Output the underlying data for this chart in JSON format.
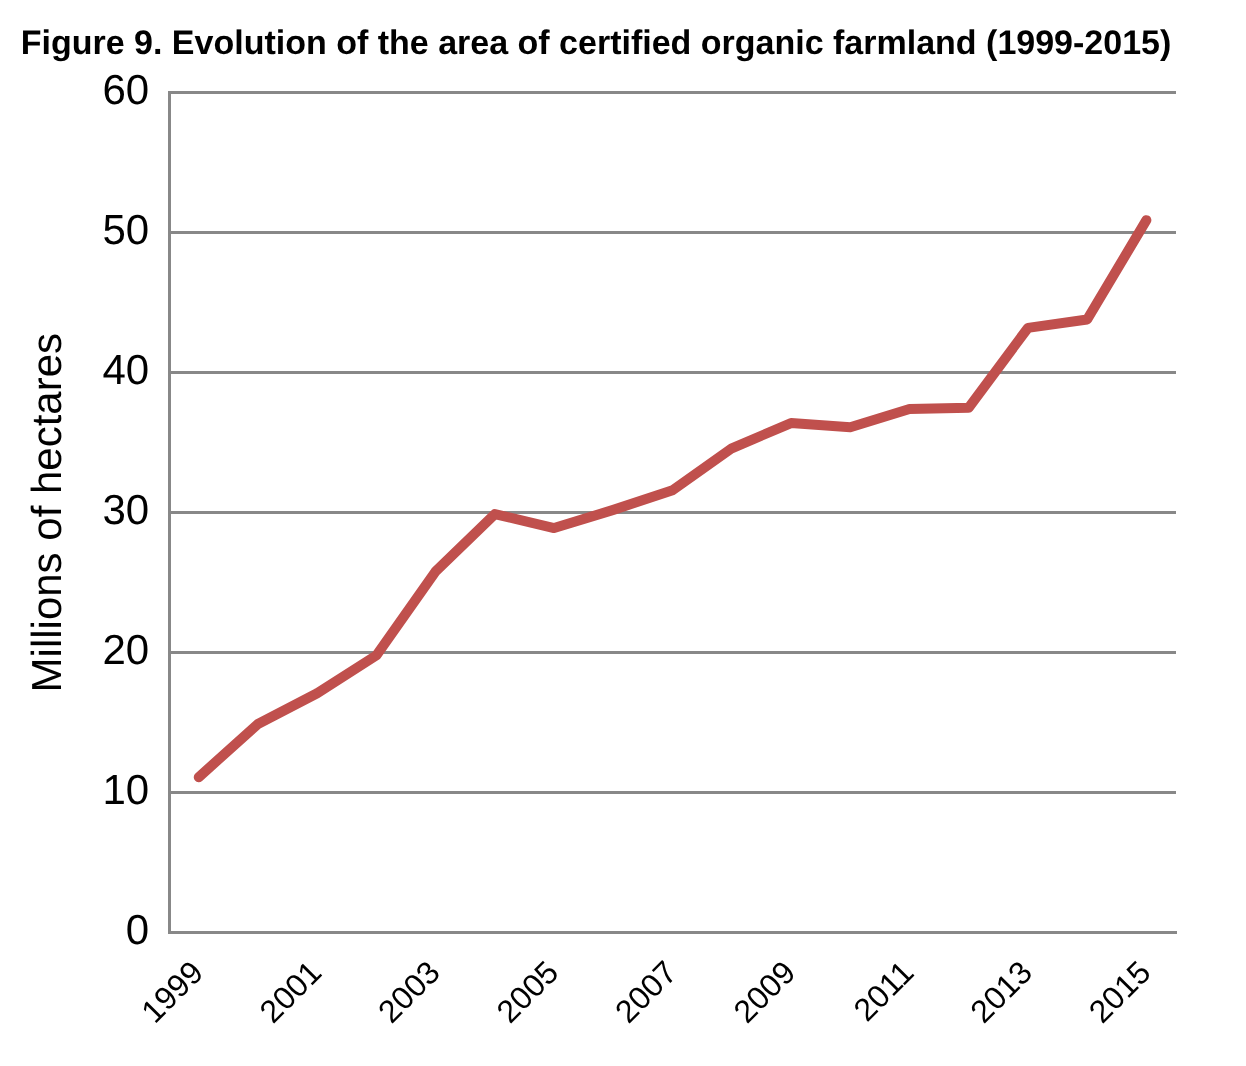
{
  "chart_data": {
    "type": "line",
    "title": "Figure 9. Evolution of the area of certified organic farmland (1999-2015)",
    "ylabel": "Millions of hectares",
    "categories": [
      "1999",
      null,
      "2001",
      null,
      "2003",
      null,
      "2005",
      null,
      "2007",
      null,
      "2009",
      null,
      "2011",
      null,
      "2013",
      null,
      "2015"
    ],
    "series": [
      {
        "color": "#c0504d",
        "values": [
          11.1,
          14.9,
          17.1,
          19.8,
          25.8,
          29.9,
          28.9,
          30.2,
          31.6,
          34.6,
          36.4,
          36.1,
          37.4,
          37.5,
          43.2,
          43.8,
          50.9
        ]
      }
    ],
    "ylim": [
      0,
      60
    ],
    "yticks": [
      0,
      10,
      20,
      30,
      40,
      50,
      60
    ],
    "grid": "y",
    "legend": false,
    "marker": "none",
    "line_style": "solid"
  }
}
